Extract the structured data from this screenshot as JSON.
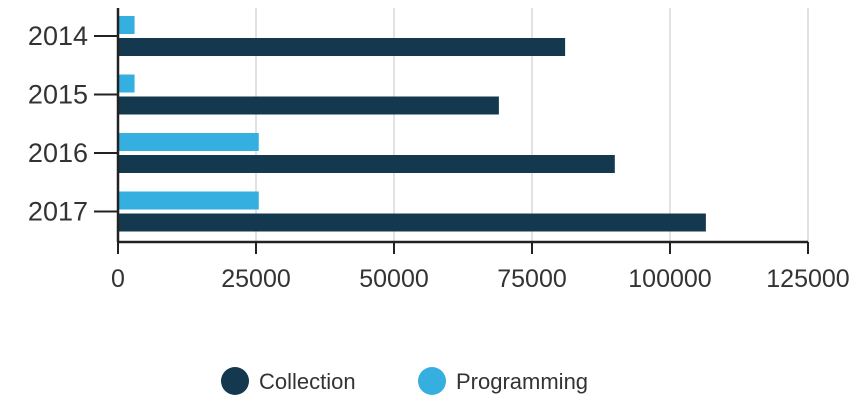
{
  "chart_data": {
    "type": "bar",
    "orientation": "horizontal",
    "categories": [
      "2014",
      "2015",
      "2016",
      "2017"
    ],
    "series": [
      {
        "name": "Programming",
        "values": [
          3000,
          3000,
          25500,
          25500
        ],
        "color": "#35aee0"
      },
      {
        "name": "Collection",
        "values": [
          81000,
          69000,
          90000,
          106500
        ],
        "color": "#14384d"
      }
    ],
    "x_ticks": [
      "0",
      "25000",
      "50000",
      "75000",
      "100000",
      "125000"
    ],
    "xlim": [
      0,
      125000
    ],
    "grid": "vertical",
    "legend": {
      "position": "bottom",
      "items": [
        {
          "label": "Collection",
          "color": "#14384d"
        },
        {
          "label": "Programming",
          "color": "#35aee0"
        }
      ]
    },
    "title": "",
    "xlabel": "",
    "ylabel": ""
  }
}
